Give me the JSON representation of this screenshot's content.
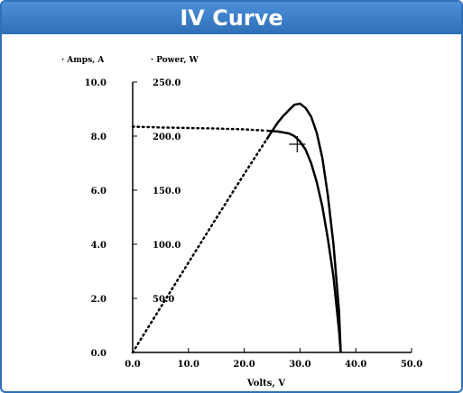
{
  "panel": {
    "title": "IV Curve",
    "border_color": "#2f6fb8",
    "title_bg_color": "#3a7dc9"
  },
  "chart_data": {
    "type": "line",
    "xlabel": "Volts, V",
    "x_ticks": [
      0,
      10,
      20,
      30,
      40,
      50
    ],
    "x_tick_labels": [
      "0.0",
      "10.0",
      "20.0",
      "30.0",
      "40.0",
      "50.0"
    ],
    "xlim": [
      0,
      50
    ],
    "left_axis": {
      "label": "Amps, A",
      "ticks": [
        0,
        2,
        4,
        6,
        8,
        10
      ],
      "tick_labels": [
        "0.0",
        "2.0",
        "4.0",
        "6.0",
        "8.0",
        "10.0"
      ],
      "ylim": [
        0,
        10
      ]
    },
    "right_axis": {
      "label": "Power, W",
      "ticks": [
        50,
        100,
        150,
        200,
        250
      ],
      "tick_labels": [
        "50.0",
        "100.0",
        "150.0",
        "200.0",
        "250.0"
      ],
      "ylim": [
        0,
        250
      ]
    },
    "grid": false,
    "series": [
      {
        "axis": "left",
        "style": "dotted-then-solid",
        "x": [
          0,
          5,
          10,
          15,
          20,
          24,
          26,
          28,
          29,
          30,
          31,
          32,
          33,
          34,
          35,
          36,
          36.5,
          37,
          37.3
        ],
        "y": [
          8.35,
          8.32,
          8.3,
          8.28,
          8.25,
          8.2,
          8.17,
          8.1,
          8.0,
          7.8,
          7.5,
          7.0,
          6.3,
          5.4,
          4.2,
          2.8,
          1.8,
          0.8,
          0.0
        ]
      },
      {
        "axis": "right",
        "style": "dotted-then-solid",
        "x": [
          0,
          5,
          10,
          15,
          20,
          24,
          26,
          27,
          28,
          29,
          30,
          31,
          32,
          33,
          34,
          35,
          36,
          37,
          37.3
        ],
        "y": [
          0,
          41.6,
          83,
          124.2,
          165,
          196.8,
          212.4,
          218.7,
          224,
          229,
          230,
          226,
          218,
          203,
          180,
          145,
          100,
          38,
          0
        ]
      }
    ],
    "mpp_marker": {
      "x": 29.5,
      "y": 7.7
    }
  }
}
